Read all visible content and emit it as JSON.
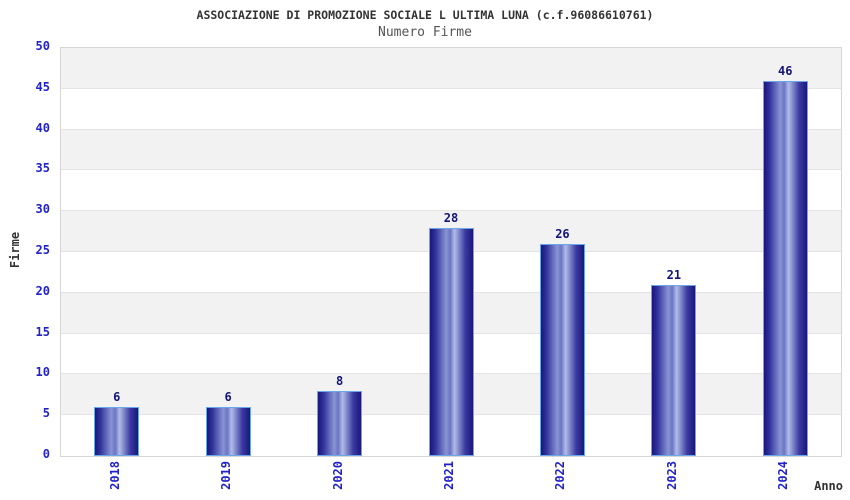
{
  "chart_data": {
    "type": "bar",
    "title": "ASSOCIAZIONE DI PROMOZIONE SOCIALE L ULTIMA LUNA (c.f.96086610761)",
    "subtitle": "Numero Firme",
    "xlabel": "Anno",
    "ylabel": "Firme",
    "categories": [
      "2018",
      "2019",
      "2020",
      "2021",
      "2022",
      "2023",
      "2024"
    ],
    "values": [
      6,
      6,
      8,
      28,
      26,
      21,
      46
    ],
    "ylim": [
      0,
      50
    ],
    "ytick_step": 5,
    "yticks": [
      0,
      5,
      10,
      15,
      20,
      25,
      30,
      35,
      40,
      45,
      50
    ],
    "grid": "horizontal alternating bands, gridlines every 5",
    "legend_position": "none",
    "colors": {
      "bar_edge_dark": "#17177c",
      "bar_center_light": "#b2bce9",
      "bar_border": "#6aa6e8",
      "axis_tick_label": "#2222cc",
      "value_label": "#14147a",
      "band_gray": "#f2f2f2",
      "band_white": "#ffffff",
      "grid_line": "#e4e4e4",
      "plot_border": "#d6d6d6",
      "title_text": "#333333",
      "subtitle_text": "#555555"
    }
  }
}
